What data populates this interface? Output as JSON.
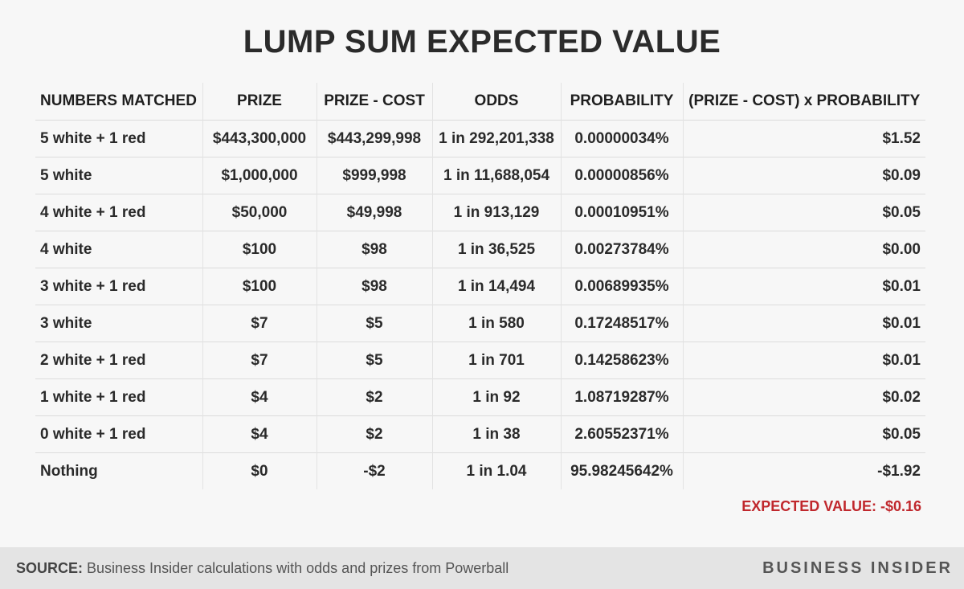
{
  "title": "LUMP SUM EXPECTED VALUE",
  "table": {
    "headers": [
      "NUMBERS MATCHED",
      "PRIZE",
      "PRIZE - COST",
      "ODDS",
      "PROBABILITY",
      "(PRIZE - COST) x PROBABILITY"
    ],
    "rows": [
      [
        "5 white + 1 red",
        "$443,300,000",
        "$443,299,998",
        "1 in 292,201,338",
        "0.00000034%",
        "$1.52"
      ],
      [
        "5 white",
        "$1,000,000",
        "$999,998",
        "1 in 11,688,054",
        "0.00000856%",
        "$0.09"
      ],
      [
        "4 white + 1 red",
        "$50,000",
        "$49,998",
        "1 in 913,129",
        "0.00010951%",
        "$0.05"
      ],
      [
        "4 white",
        "$100",
        "$98",
        "1 in 36,525",
        "0.00273784%",
        "$0.00"
      ],
      [
        "3 white + 1 red",
        "$100",
        "$98",
        "1 in 14,494",
        "0.00689935%",
        "$0.01"
      ],
      [
        "3 white",
        "$7",
        "$5",
        "1 in 580",
        "0.17248517%",
        "$0.01"
      ],
      [
        "2 white + 1 red",
        "$7",
        "$5",
        "1 in 701",
        "0.14258623%",
        "$0.01"
      ],
      [
        "1 white + 1 red",
        "$4",
        "$2",
        "1 in 92",
        "1.08719287%",
        "$0.02"
      ],
      [
        "0 white + 1 red",
        "$4",
        "$2",
        "1 in 38",
        "2.60552371%",
        "$0.05"
      ],
      [
        "Nothing",
        "$0",
        "-$2",
        "1 in 1.04",
        "95.98245642%",
        "-$1.92"
      ]
    ]
  },
  "expected_value": "EXPECTED VALUE: -$0.16",
  "footer": {
    "source_label": "SOURCE:",
    "source_text": " Business Insider calculations with odds and prizes from Powerball",
    "brand": "BUSINESS INSIDER"
  },
  "colors": {
    "expected_value": "#c0282d",
    "footer_bg": "#e4e4e4",
    "page_bg": "#f7f7f7"
  }
}
